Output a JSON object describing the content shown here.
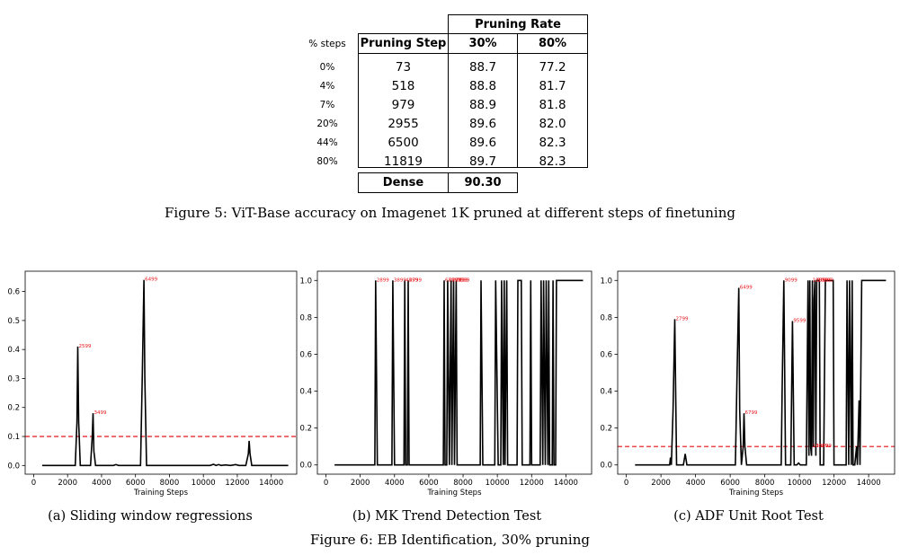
{
  "table": {
    "group_header": "Pruning Rate",
    "col_steps": "% steps",
    "col_step": "Pruning Step",
    "col_30": "30%",
    "col_80": "80%",
    "rows": [
      {
        "pct": "0%",
        "step": "73",
        "r30": "88.7",
        "r80": "77.2"
      },
      {
        "pct": "4%",
        "step": "518",
        "r30": "88.8",
        "r80": "81.7"
      },
      {
        "pct": "7%",
        "step": "979",
        "r30": "88.9",
        "r80": "81.8"
      },
      {
        "pct": "20%",
        "step": "2955",
        "r30": "89.6",
        "r80": "82.0"
      },
      {
        "pct": "44%",
        "step": "6500",
        "r30": "89.6",
        "r80": "82.3"
      },
      {
        "pct": "80%",
        "step": "11819",
        "r30": "89.7",
        "r80": "82.3"
      }
    ],
    "dense_label": "Dense",
    "dense_value": "90.30"
  },
  "figure5_caption": "Figure 5: ViT-Base accuracy on Imagenet 1K pruned at different steps of finetuning",
  "figure6_caption": "Figure 6: EB Identification, 30% pruning",
  "chart_data": [
    {
      "type": "line",
      "caption": "(a) Sliding window regressions",
      "xlabel": "Training Steps",
      "xlim": [
        -500,
        15500
      ],
      "ylim": [
        -0.03,
        0.67
      ],
      "xticks": [
        0,
        2000,
        4000,
        6000,
        8000,
        10000,
        12000,
        14000
      ],
      "yticks": [
        "0.0",
        "0.1",
        "0.2",
        "0.3",
        "0.4",
        "0.5",
        "0.6"
      ],
      "threshold": 0.1,
      "line_color": "#000000",
      "threshold_color": "#e8151b",
      "annotation_color": "#e8151b",
      "x": [
        500,
        2450,
        2550,
        2599,
        2650,
        2750,
        3350,
        3450,
        3499,
        3550,
        3650,
        4700,
        4850,
        5000,
        6300,
        6400,
        6499,
        6550,
        6650,
        10400,
        10600,
        10750,
        10900,
        11050,
        11300,
        11600,
        11900,
        12100,
        12500,
        12650,
        12700,
        12750,
        12850,
        15000
      ],
      "y": [
        0.0,
        0.0,
        0.15,
        0.41,
        0.15,
        0.0,
        0.0,
        0.1,
        0.18,
        0.05,
        0.0,
        0.0,
        0.003,
        0.0,
        0.0,
        0.3,
        0.64,
        0.3,
        0.0,
        0.0,
        0.004,
        0.0,
        0.003,
        0.0,
        0.002,
        0.0,
        0.003,
        0.0,
        0.0,
        0.04,
        0.085,
        0.04,
        0.0,
        0.0
      ],
      "annotations": [
        {
          "x": 2599,
          "y": 0.41,
          "label": "2599"
        },
        {
          "x": 3499,
          "y": 0.18,
          "label": "3499"
        },
        {
          "x": 6499,
          "y": 0.64,
          "label": "6499"
        }
      ]
    },
    {
      "type": "line",
      "caption": "(b) MK Trend Detection Test",
      "xlabel": "Training Steps",
      "xlim": [
        -500,
        15500
      ],
      "ylim": [
        -0.05,
        1.05
      ],
      "xticks": [
        0,
        2000,
        4000,
        6000,
        8000,
        10000,
        12000,
        14000
      ],
      "yticks": [
        "0.0",
        "0.2",
        "0.4",
        "0.6",
        "0.8",
        "1.0"
      ],
      "threshold": null,
      "line_color": "#000000",
      "threshold_color": "#e8151b",
      "annotation_color": "#e8151b",
      "x": [
        500,
        2850,
        2899,
        3000,
        3850,
        3899,
        4000,
        4550,
        4599,
        4650,
        4750,
        4799,
        4850,
        6850,
        6899,
        6950,
        7050,
        7100,
        7200,
        7300,
        7350,
        7450,
        7500,
        7600,
        7650,
        7800,
        9000,
        9050,
        9150,
        9850,
        9900,
        10050,
        10200,
        10250,
        10350,
        10400,
        10450,
        10550,
        10600,
        11150,
        11200,
        11400,
        11450,
        11900,
        11950,
        12000,
        12500,
        12550,
        12650,
        12700,
        12800,
        12850,
        12950,
        13000,
        13050,
        13200,
        13250,
        13300,
        13400,
        13450,
        15000
      ],
      "y": [
        0,
        0,
        1,
        0,
        0,
        1,
        0,
        0,
        1,
        0,
        0,
        1,
        0,
        0,
        1,
        0,
        0,
        1,
        0,
        1,
        0,
        1,
        0,
        1,
        0,
        0,
        0,
        1,
        0,
        0,
        1,
        0,
        0,
        1,
        0,
        1,
        0,
        1,
        0,
        0,
        1,
        1,
        0,
        0,
        1,
        0,
        0,
        1,
        0,
        1,
        0,
        1,
        0,
        1,
        0,
        0,
        1,
        0,
        0,
        1,
        1
      ],
      "annotations": [
        {
          "x": 2899,
          "y": 1.0,
          "label": "2899"
        },
        {
          "x": 3899,
          "y": 1.0,
          "label": "3899"
        },
        {
          "x": 4599,
          "y": 1.0,
          "label": "4599"
        },
        {
          "x": 4799,
          "y": 1.0,
          "label": "4799"
        },
        {
          "x": 6899,
          "y": 1.0,
          "label": "6899"
        },
        {
          "x": 7099,
          "y": 1.0,
          "label": "7099"
        },
        {
          "x": 7299,
          "y": 1.0,
          "label": "7299"
        },
        {
          "x": 7499,
          "y": 1.0,
          "label": "7499"
        },
        {
          "x": 7599,
          "y": 1.0,
          "label": "7599"
        }
      ]
    },
    {
      "type": "line",
      "caption": "(c) ADF Unit Root Test",
      "xlabel": "Training Steps",
      "xlim": [
        -500,
        15500
      ],
      "ylim": [
        -0.05,
        1.05
      ],
      "xticks": [
        0,
        2000,
        4000,
        6000,
        8000,
        10000,
        12000,
        14000
      ],
      "yticks": [
        "0.0",
        "0.2",
        "0.4",
        "0.6",
        "0.8",
        "1.0"
      ],
      "threshold": 0.1,
      "line_color": "#000000",
      "threshold_color": "#e8151b",
      "annotation_color": "#e8151b",
      "x": [
        500,
        2500,
        2550,
        2600,
        2700,
        2799,
        2900,
        3300,
        3400,
        3500,
        6300,
        6400,
        6499,
        6550,
        6650,
        6750,
        6799,
        6850,
        6950,
        8950,
        9000,
        9099,
        9200,
        9500,
        9599,
        9700,
        9850,
        9950,
        10050,
        10400,
        10499,
        10550,
        10600,
        10650,
        10699,
        10750,
        10800,
        10850,
        10899,
        10950,
        11000,
        11150,
        11200,
        11400,
        11500,
        11600,
        11650,
        11900,
        11950,
        12000,
        12700,
        12750,
        12850,
        12900,
        13000,
        13050,
        13100,
        13200,
        13300,
        13350,
        13450,
        13500,
        13600,
        13650,
        15000
      ],
      "y": [
        0.0,
        0.0,
        0.04,
        0.0,
        0.3,
        0.79,
        0.0,
        0.0,
        0.06,
        0.0,
        0.0,
        0.5,
        0.96,
        0.3,
        0.0,
        0.1,
        0.28,
        0.1,
        0.0,
        0.0,
        0.4,
        1.0,
        0.0,
        0.0,
        0.78,
        0.0,
        0.0,
        0.01,
        0.0,
        0.0,
        1.0,
        0.05,
        1.0,
        0.1,
        0.05,
        1.0,
        0.1,
        0.9,
        1.0,
        0.05,
        1.0,
        1.0,
        0.0,
        0.0,
        1.0,
        1.0,
        1.0,
        1.0,
        1.0,
        0.0,
        0.0,
        1.0,
        0.0,
        1.0,
        0.0,
        1.0,
        0.0,
        0.0,
        0.1,
        0.0,
        0.35,
        0.0,
        1.0,
        1.0,
        1.0
      ],
      "annotations": [
        {
          "x": 2799,
          "y": 0.79,
          "label": "2799"
        },
        {
          "x": 6499,
          "y": 0.96,
          "label": "6499"
        },
        {
          "x": 6799,
          "y": 0.28,
          "label": "6799"
        },
        {
          "x": 9099,
          "y": 1.0,
          "label": "9099"
        },
        {
          "x": 9599,
          "y": 0.78,
          "label": "9599"
        },
        {
          "x": 10699,
          "y": 1.0,
          "label": "10699"
        },
        {
          "x": 10899,
          "y": 1.0,
          "label": "10899"
        },
        {
          "x": 10999,
          "y": 1.0,
          "label": "10999"
        },
        {
          "x": 10699,
          "y": 0.1,
          "label": "10699"
        },
        {
          "x": 10899,
          "y": 0.1,
          "label": "10899"
        }
      ]
    }
  ]
}
